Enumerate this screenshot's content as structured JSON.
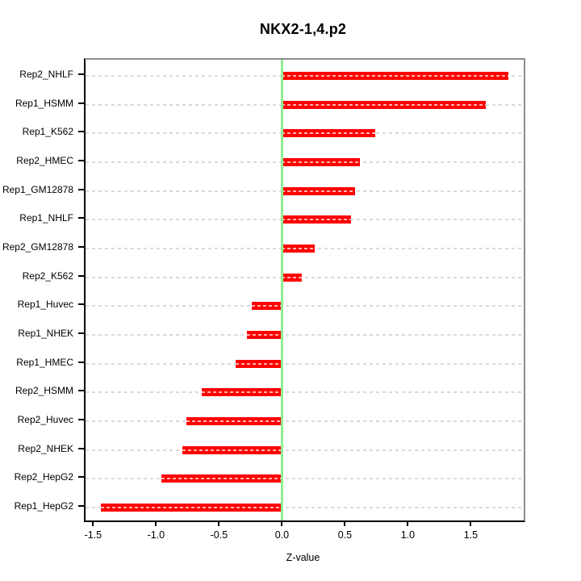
{
  "chart_data": {
    "type": "bar",
    "orientation": "horizontal",
    "title": "NKX2-1,4.p2",
    "xlabel": "Z-value",
    "ylabel": "",
    "categories": [
      "Rep2_NHLF",
      "Rep1_HSMM",
      "Rep1_K562",
      "Rep2_HMEC",
      "Rep1_GM12878",
      "Rep1_NHLF",
      "Rep2_GM12878",
      "Rep2_K562",
      "Rep1_Huvec",
      "Rep1_NHEK",
      "Rep1_HMEC",
      "Rep2_HSMM",
      "Rep2_Huvec",
      "Rep2_NHEK",
      "Rep2_HepG2",
      "Rep1_HepG2"
    ],
    "values": [
      1.8,
      1.62,
      0.74,
      0.62,
      0.58,
      0.55,
      0.26,
      0.16,
      -0.24,
      -0.28,
      -0.37,
      -0.64,
      -0.76,
      -0.79,
      -0.96,
      -1.44
    ],
    "x_ticks": [
      -1.5,
      -1.0,
      -0.5,
      0.0,
      0.5,
      1.0,
      1.5
    ],
    "x_tick_labels": [
      "-1.5",
      "-1.0",
      "-0.5",
      "0.0",
      "0.5",
      "1.0",
      "1.5"
    ],
    "xlim": [
      -1.56,
      1.92
    ],
    "grid": true,
    "legend": null,
    "zero_line_value": 0,
    "colors": {
      "bar": "#ff0000",
      "bar_stripe": "rgba(255,255,255,0.7)",
      "zero_line": "#90ee90",
      "grid": "#d9d9d9",
      "axis": "#000000",
      "box": "#8c8c8c",
      "text": "#000000",
      "background": "#ffffff"
    }
  }
}
